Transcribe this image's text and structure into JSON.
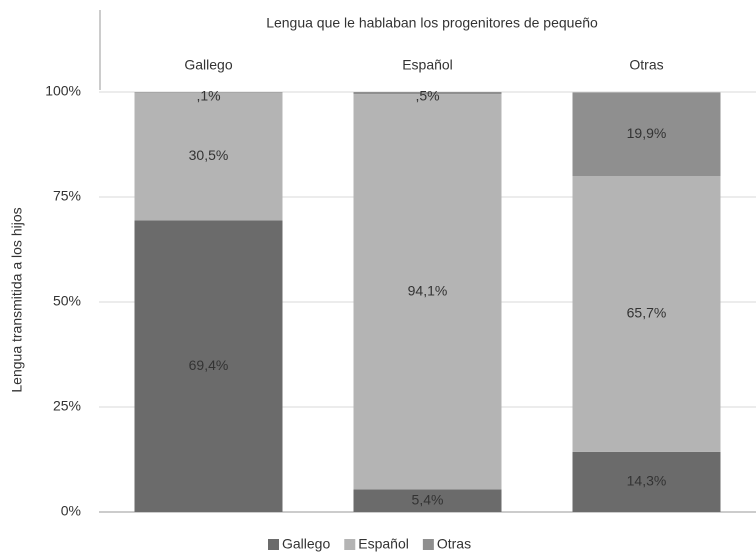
{
  "chart_data": {
    "type": "stacked_bar",
    "header": "Lengua que le hablaban los progenitores de pequeño",
    "y_label": "Lengua transmitida a los hijos",
    "categories": [
      "Gallego",
      "Español",
      "Otras"
    ],
    "series": [
      {
        "name": "Gallego",
        "color": "#6b6b6b",
        "values": [
          69.4,
          5.4,
          14.3
        ],
        "value_labels": [
          "69,4%",
          "5,4%",
          "14,3%"
        ]
      },
      {
        "name": "Español",
        "color": "#b4b4b4",
        "values": [
          30.5,
          94.1,
          65.7
        ],
        "value_labels": [
          "30,5%",
          "94,1%",
          "65,7%"
        ]
      },
      {
        "name": "Otras",
        "color": "#8f8f8f",
        "values": [
          0.1,
          0.5,
          19.9
        ],
        "value_labels": [
          ",1%",
          ",5%",
          "19,9%"
        ]
      }
    ],
    "ylim": [
      0,
      100
    ],
    "yticks": [
      {
        "value": 0,
        "label": "0%"
      },
      {
        "value": 25,
        "label": "25%"
      },
      {
        "value": 50,
        "label": "50%"
      },
      {
        "value": 75,
        "label": "75%"
      },
      {
        "value": 100,
        "label": "100%"
      }
    ],
    "grid": true,
    "legend": "bottom"
  }
}
